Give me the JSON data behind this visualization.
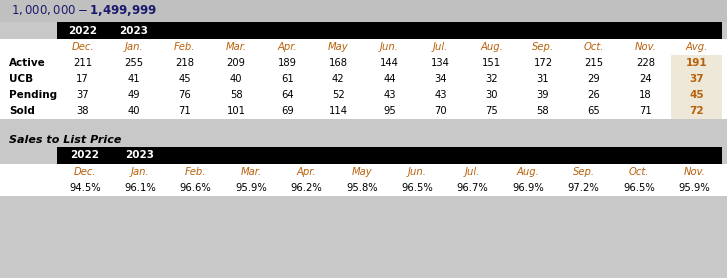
{
  "title": "$1,000,000 - $1,499,999",
  "title_bg": "#c0c0c0",
  "title_color": "#1a1a6e",
  "header_bg": "#000000",
  "header_text_color": "#ffffff",
  "year_labels": [
    "2022",
    "2023"
  ],
  "col_headers": [
    "Dec.",
    "Jan.",
    "Feb.",
    "Mar.",
    "Apr.",
    "May",
    "Jun.",
    "Jul.",
    "Aug.",
    "Sep.",
    "Oct.",
    "Nov.",
    "Avg."
  ],
  "row_labels": [
    "Active",
    "UCB",
    "Pending",
    "Sold"
  ],
  "table_data": [
    [
      211,
      255,
      218,
      209,
      189,
      168,
      144,
      134,
      151,
      172,
      215,
      228,
      191
    ],
    [
      17,
      41,
      45,
      40,
      61,
      42,
      44,
      34,
      32,
      31,
      29,
      24,
      37
    ],
    [
      37,
      49,
      76,
      58,
      64,
      52,
      43,
      43,
      30,
      39,
      26,
      18,
      45
    ],
    [
      38,
      40,
      71,
      101,
      69,
      114,
      95,
      70,
      75,
      58,
      65,
      71,
      72
    ]
  ],
  "avg_bg": "#ede8d8",
  "row_label_color": "#000000",
  "data_color": "#000000",
  "avg_color": "#b8600a",
  "sales_title": "Sales to List Price",
  "sales_col_headers": [
    "Dec.",
    "Jan.",
    "Feb.",
    "Mar.",
    "Apr.",
    "May",
    "Jun.",
    "Jul.",
    "Aug.",
    "Sep.",
    "Oct.",
    "Nov."
  ],
  "sales_data": [
    "94.5%",
    "96.1%",
    "96.6%",
    "95.9%",
    "96.2%",
    "95.8%",
    "96.5%",
    "96.7%",
    "96.9%",
    "97.2%",
    "96.5%",
    "95.9%"
  ],
  "col_header_color": "#b8600a",
  "bg_color": "#ffffff",
  "outer_bg": "#c8c8c8",
  "fig_width": 7.27,
  "fig_height": 2.78,
  "dpi": 100
}
